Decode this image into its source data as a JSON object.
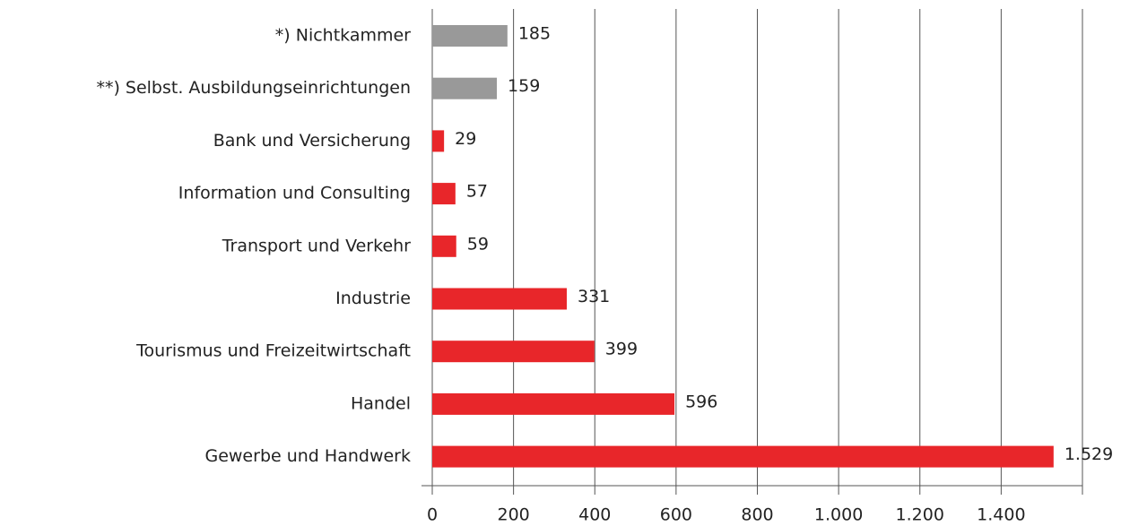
{
  "chart_data": {
    "type": "bar",
    "orientation": "horizontal",
    "categories": [
      "*) Nichtkammer",
      "**) Selbst. Ausbildungseinrichtungen",
      "Bank und Versicherung",
      "Information und Consulting",
      "Transport und Verkehr",
      "Industrie",
      "Tourismus und Freizeitwirtschaft",
      "Handel",
      "Gewerbe und Handwerk"
    ],
    "values": [
      185,
      159,
      29,
      57,
      59,
      331,
      399,
      596,
      1529
    ],
    "value_labels": [
      "185",
      "159",
      "29",
      "57",
      "59",
      "331",
      "399",
      "596",
      "1.529"
    ],
    "colors": [
      "#999999",
      "#999999",
      "#e8262a",
      "#e8262a",
      "#e8262a",
      "#e8262a",
      "#e8262a",
      "#e8262a",
      "#e8262a"
    ],
    "xlim": [
      0,
      1600
    ],
    "xticks": [
      0,
      200,
      400,
      600,
      800,
      {
        "value": 1000,
        "label": "1.000"
      },
      {
        "value": 1200,
        "label": "1.200"
      },
      {
        "value": 1400,
        "label": "1.400"
      }
    ],
    "grid": true
  }
}
